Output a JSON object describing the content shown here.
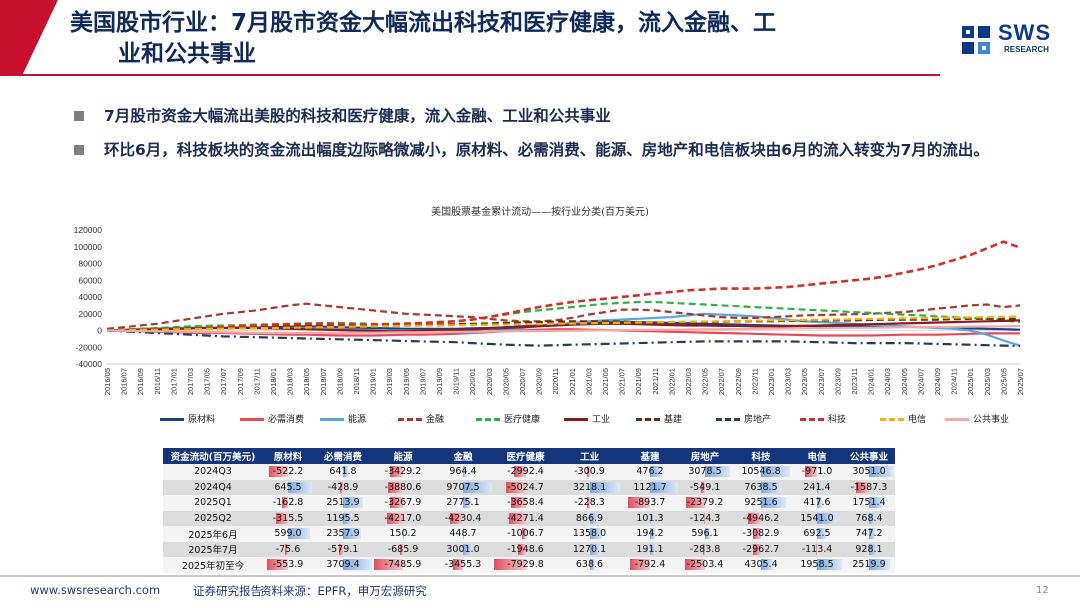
{
  "header": {
    "title_line1": "美国股市行业：7月股市资金大幅流出科技和医疗健康，流入金融、工",
    "title_line2": "业和公共事业",
    "logo_name": "SWS",
    "logo_sub": "RESEARCH",
    "accent": "#c8102e"
  },
  "bullets": [
    "7月股市资金大幅流出美股的科技和医疗健康，流入金融、工业和公共事业",
    "环比6月，科技板块的资金流出幅度边际略微减小，原材料、必需消费、能源、房地产和电信板块由6月的流入转变为7月的流出。"
  ],
  "chart_data": {
    "type": "line",
    "title": "美国股票基金累计流动——按行业分类(百万美元)",
    "ylim": [
      -40000,
      120000
    ],
    "yticks": [
      -40000,
      -20000,
      0,
      20000,
      40000,
      60000,
      80000,
      100000,
      120000
    ],
    "x": [
      "2016/05",
      "2016/07",
      "2016/09",
      "2016/11",
      "2017/01",
      "2017/03",
      "2017/05",
      "2017/07",
      "2017/09",
      "2017/11",
      "2018/01",
      "2018/03",
      "2018/05",
      "2018/07",
      "2018/09",
      "2018/11",
      "2019/01",
      "2019/03",
      "2019/05",
      "2019/07",
      "2019/09",
      "2019/11",
      "2020/01",
      "2020/03",
      "2020/05",
      "2020/07",
      "2020/09",
      "2020/11",
      "2021/01",
      "2021/03",
      "2021/05",
      "2021/07",
      "2021/09",
      "2021/11",
      "2022/01",
      "2022/03",
      "2022/05",
      "2022/07",
      "2022/09",
      "2022/11",
      "2023/01",
      "2023/03",
      "2023/05",
      "2023/07",
      "2023/09",
      "2023/11",
      "2024/01",
      "2024/03",
      "2024/05",
      "2024/07",
      "2024/09",
      "2024/11",
      "2025/01",
      "2025/03",
      "2025/05",
      "2025/07"
    ],
    "series": [
      {
        "name": "原材料",
        "color": "#1f3e8c",
        "dash": "solid",
        "values": [
          0,
          500,
          1000,
          1500,
          2000,
          2500,
          3000,
          3000,
          3500,
          3500,
          4000,
          4500,
          5000,
          4500,
          4000,
          3500,
          3000,
          2500,
          2000,
          2000,
          2000,
          2000,
          2500,
          3000,
          4000,
          5000,
          6000,
          7000,
          8000,
          9000,
          9500,
          10000,
          10000,
          9500,
          9000,
          8500,
          8000,
          7500,
          7000,
          6500,
          6000,
          5500,
          5500,
          5000,
          5000,
          5000,
          5000,
          5000,
          4500,
          4000,
          3500,
          3000,
          2500,
          2000,
          1500,
          1000
        ]
      },
      {
        "name": "必需消费",
        "color": "#e8495a",
        "dash": "solid",
        "values": [
          0,
          -500,
          -1000,
          -1500,
          -2000,
          -2500,
          -3000,
          -3000,
          -3500,
          -4000,
          -4500,
          -5000,
          -5000,
          -5500,
          -6000,
          -6000,
          -6000,
          -5500,
          -5000,
          -5000,
          -4500,
          -4000,
          -3000,
          -2000,
          -1000,
          0,
          1000,
          1500,
          1500,
          1000,
          500,
          0,
          -500,
          -1000,
          -1500,
          -2000,
          -2500,
          -3000,
          -3500,
          -4000,
          -4500,
          -5000,
          -5500,
          -6000,
          -6000,
          -6000,
          -6000,
          -5500,
          -5000,
          -5000,
          -5000,
          -4500,
          -4000,
          -3500,
          -3500,
          -3500
        ]
      },
      {
        "name": "能源",
        "color": "#5aa7e0",
        "dash": "solid",
        "values": [
          0,
          1000,
          2000,
          2500,
          3000,
          3500,
          3500,
          3000,
          3000,
          3000,
          2500,
          2000,
          2000,
          2000,
          1500,
          1000,
          500,
          0,
          -500,
          -1000,
          -1500,
          -2000,
          -2500,
          -1000,
          1000,
          3000,
          5000,
          7000,
          9000,
          11000,
          12000,
          13000,
          14000,
          15000,
          16000,
          18000,
          20000,
          19000,
          18000,
          17000,
          15000,
          13000,
          11000,
          10000,
          9000,
          8000,
          7000,
          6000,
          5000,
          4000,
          3000,
          2000,
          0,
          -5000,
          -12000,
          -18000
        ]
      },
      {
        "name": "金融",
        "color": "#a8392e",
        "dash": "dash",
        "values": [
          2000,
          4000,
          6000,
          8000,
          11000,
          14000,
          17000,
          20000,
          22000,
          24000,
          27000,
          30000,
          32000,
          30000,
          28000,
          26000,
          24000,
          22000,
          20000,
          19000,
          18000,
          17000,
          16000,
          14000,
          12000,
          11000,
          11000,
          12000,
          15000,
          19000,
          22000,
          25000,
          25000,
          24000,
          22000,
          20000,
          18000,
          16000,
          15000,
          15000,
          16000,
          17000,
          18000,
          18500,
          19000,
          19500,
          20000,
          21000,
          22000,
          24000,
          26000,
          28000,
          30000,
          31000,
          28000,
          30000
        ]
      },
      {
        "name": "医疗健康",
        "color": "#2fb24a",
        "dash": "dash",
        "values": [
          0,
          1000,
          2000,
          3000,
          4000,
          5000,
          5500,
          6000,
          6500,
          7000,
          7500,
          8000,
          8500,
          9000,
          9000,
          8500,
          8000,
          8000,
          8500,
          9000,
          10000,
          11000,
          13000,
          16000,
          19000,
          22000,
          24000,
          26000,
          28000,
          30000,
          32000,
          33000,
          34000,
          34000,
          33000,
          32000,
          31000,
          30000,
          29000,
          28000,
          27000,
          26000,
          25000,
          24000,
          23000,
          22000,
          21000,
          20000,
          19000,
          18000,
          17000,
          16000,
          15000,
          14000,
          12000,
          10000
        ]
      },
      {
        "name": "工业",
        "color": "#8b1c1c",
        "dash": "solid",
        "values": [
          0,
          500,
          1000,
          1500,
          2000,
          2500,
          3000,
          3000,
          3500,
          3000,
          2500,
          2000,
          1500,
          1000,
          500,
          0,
          -500,
          -1000,
          -1000,
          -500,
          0,
          500,
          1000,
          2000,
          3000,
          4000,
          5000,
          6000,
          7000,
          7500,
          8000,
          8000,
          7500,
          7000,
          6500,
          6000,
          6000,
          5500,
          5500,
          5000,
          5000,
          5000,
          5500,
          6000,
          6500,
          7000,
          7500,
          8000,
          8500,
          9000,
          9500,
          10000,
          10500,
          11000,
          11500,
          12000
        ]
      },
      {
        "name": "基建",
        "color": "#5c2e0f",
        "dash": "dash",
        "values": [
          0,
          500,
          1000,
          1500,
          2000,
          2500,
          3000,
          3500,
          4000,
          4500,
          5000,
          5500,
          6000,
          6000,
          6000,
          6000,
          6000,
          6000,
          6000,
          6500,
          7000,
          7500,
          8000,
          8500,
          9000,
          9500,
          10000,
          10500,
          11000,
          11000,
          11000,
          10500,
          10000,
          10000,
          10000,
          10000,
          10000,
          10500,
          11000,
          11000,
          11000,
          11500,
          12000,
          12000,
          12000,
          12000,
          12500,
          13000,
          13000,
          13000,
          13000,
          13500,
          14000,
          14000,
          14000,
          14000
        ]
      },
      {
        "name": "房地产",
        "color": "#2b3a55",
        "dash": "dashdot",
        "values": [
          0,
          -1000,
          -2000,
          -3000,
          -4000,
          -5000,
          -6000,
          -7000,
          -7500,
          -8000,
          -8500,
          -9000,
          -9500,
          -10000,
          -10500,
          -11000,
          -11500,
          -12000,
          -12500,
          -13000,
          -13500,
          -14000,
          -15000,
          -16000,
          -17000,
          -17500,
          -18000,
          -17500,
          -17000,
          -16500,
          -16000,
          -15500,
          -15000,
          -14500,
          -14000,
          -13500,
          -13000,
          -13000,
          -13000,
          -13000,
          -13000,
          -13000,
          -13500,
          -14000,
          -14500,
          -15000,
          -15000,
          -15000,
          -15000,
          -15500,
          -16000,
          -16500,
          -17000,
          -17500,
          -18000,
          -18500
        ]
      },
      {
        "name": "科技",
        "color": "#d0312d",
        "dash": "dash",
        "values": [
          0,
          500,
          1000,
          1000,
          1500,
          2000,
          3000,
          4000,
          5000,
          6000,
          7000,
          7500,
          8000,
          8000,
          7500,
          7000,
          7000,
          7500,
          8000,
          9000,
          10000,
          11000,
          13000,
          16000,
          20000,
          24000,
          28000,
          31000,
          34000,
          36000,
          38000,
          40000,
          42000,
          44000,
          46000,
          48000,
          49000,
          50000,
          50000,
          50000,
          51000,
          52000,
          54000,
          56000,
          58000,
          60000,
          62000,
          65000,
          69000,
          73000,
          78000,
          84000,
          90000,
          98000,
          106000,
          99000
        ]
      },
      {
        "name": "电信",
        "color": "#f2b400",
        "dash": "dash",
        "values": [
          0,
          300,
          600,
          900,
          1200,
          1500,
          1800,
          2100,
          2400,
          2700,
          3000,
          3300,
          3600,
          3900,
          4200,
          4500,
          4800,
          5100,
          5400,
          5700,
          6000,
          6300,
          6600,
          6900,
          7200,
          7500,
          7800,
          8100,
          8400,
          8700,
          9000,
          9300,
          9600,
          9900,
          10200,
          10500,
          10800,
          11100,
          11400,
          11700,
          12000,
          12300,
          12600,
          12900,
          13200,
          13500,
          13800,
          14100,
          14400,
          14700,
          15000,
          15300,
          15600,
          15900,
          16200,
          16500
        ]
      },
      {
        "name": "公共事业",
        "color": "#f4a8a6",
        "dash": "solid",
        "values": [
          0,
          -300,
          -600,
          -900,
          -1200,
          -1500,
          -1800,
          -2100,
          -2400,
          -2700,
          -3000,
          -3000,
          -3000,
          -3000,
          -3000,
          -2800,
          -2600,
          -2400,
          -2200,
          -2000,
          -1800,
          -1600,
          -1400,
          -1200,
          -1000,
          -800,
          -600,
          -400,
          -200,
          0,
          200,
          400,
          600,
          800,
          1000,
          1200,
          1400,
          1600,
          1800,
          2000,
          2200,
          2400,
          2600,
          2800,
          3000,
          3200,
          3400,
          3600,
          3800,
          4000,
          4200,
          4400,
          4600,
          4800,
          5000,
          5200
        ]
      }
    ]
  },
  "table": {
    "headers": [
      "资金流动(百万美元)",
      "原材料",
      "必需消费",
      "能源",
      "金融",
      "医疗健康",
      "工业",
      "基建",
      "房地产",
      "科技",
      "电信",
      "公共事业"
    ],
    "rows": [
      {
        "label": "2024Q3",
        "cells": [
          "-522.2",
          "641.8",
          "-3429.2",
          "964.4",
          "-2992.4",
          "-300.9",
          "476.2",
          "3078.5",
          "10546.8",
          "-971.0",
          "3051.0"
        ]
      },
      {
        "label": "2024Q4",
        "cells": [
          "645.5",
          "-428.9",
          "-3880.6",
          "9707.5",
          "-5024.7",
          "3218.1",
          "1121.7",
          "-549.1",
          "7638.5",
          "241.4",
          "-1587.3"
        ]
      },
      {
        "label": "2025Q1",
        "cells": [
          "-162.8",
          "2513.9",
          "-3267.9",
          "2775.1",
          "-3658.4",
          "-228.3",
          "-893.7",
          "-2379.2",
          "9251.6",
          "417.6",
          "1751.4"
        ]
      },
      {
        "label": "2025Q2",
        "cells": [
          "-315.5",
          "1195.5",
          "-4217.0",
          "-4230.4",
          "-4271.4",
          "866.9",
          "101.3",
          "-124.3",
          "-4946.2",
          "1541.0",
          "768.4"
        ]
      },
      {
        "label": "2025年6月",
        "cells": [
          "599.0",
          "2357.9",
          "150.2",
          "448.7",
          "-1006.7",
          "1358.0",
          "194.2",
          "596.1",
          "-3082.9",
          "692.5",
          "747.2"
        ]
      },
      {
        "label": "2025年7月",
        "cells": [
          "-75.6",
          "-579.1",
          "-685.9",
          "3001.0",
          "-1948.6",
          "1270.1",
          "191.1",
          "-283.8",
          "-2962.7",
          "-113.4",
          "928.1"
        ]
      },
      {
        "label": "2025年初至今",
        "cells": [
          "-553.9",
          "3709.4",
          "-7485.9",
          "-3455.3",
          "-7929.8",
          "638.6",
          "-792.4",
          "-2503.4",
          "4305.4",
          "1958.5",
          "2519.9"
        ]
      }
    ]
  },
  "footer": {
    "url": "www.swsresearch.com",
    "tag": "证券研究报告",
    "source": "资料来源：EPFR，申万宏源研究",
    "page": "12"
  }
}
